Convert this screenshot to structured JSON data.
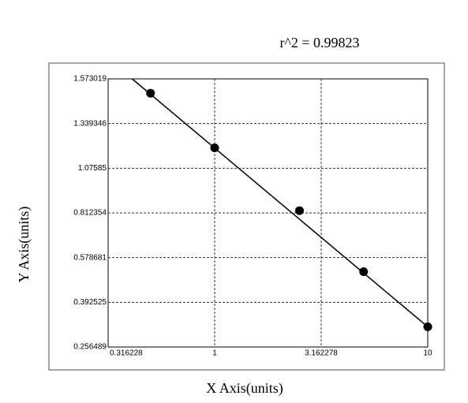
{
  "chart_data": {
    "type": "scatter",
    "title": "r^2  =  0.99823",
    "x_label": "X Axis(units)",
    "y_label": "Y Axis(units)",
    "x": [
      0.5,
      1,
      2.5,
      5,
      10
    ],
    "values": [
      1.498,
      1.196,
      0.826,
      0.52,
      0.318
    ],
    "color": "#000000",
    "fit": {
      "x": [
        0.41,
        10
      ],
      "values": [
        1.573,
        0.318
      ]
    },
    "xscale": "log",
    "xlim": [
      0.316228,
      10
    ],
    "xticks": [
      0.316228,
      1,
      3.162278,
      10
    ],
    "ylim": [
      0.256489,
      1.573019
    ],
    "yticks": [
      0.256489,
      0.392525,
      0.578681,
      0.812354,
      1.07585,
      1.339346,
      1.573019
    ],
    "grid": true
  }
}
